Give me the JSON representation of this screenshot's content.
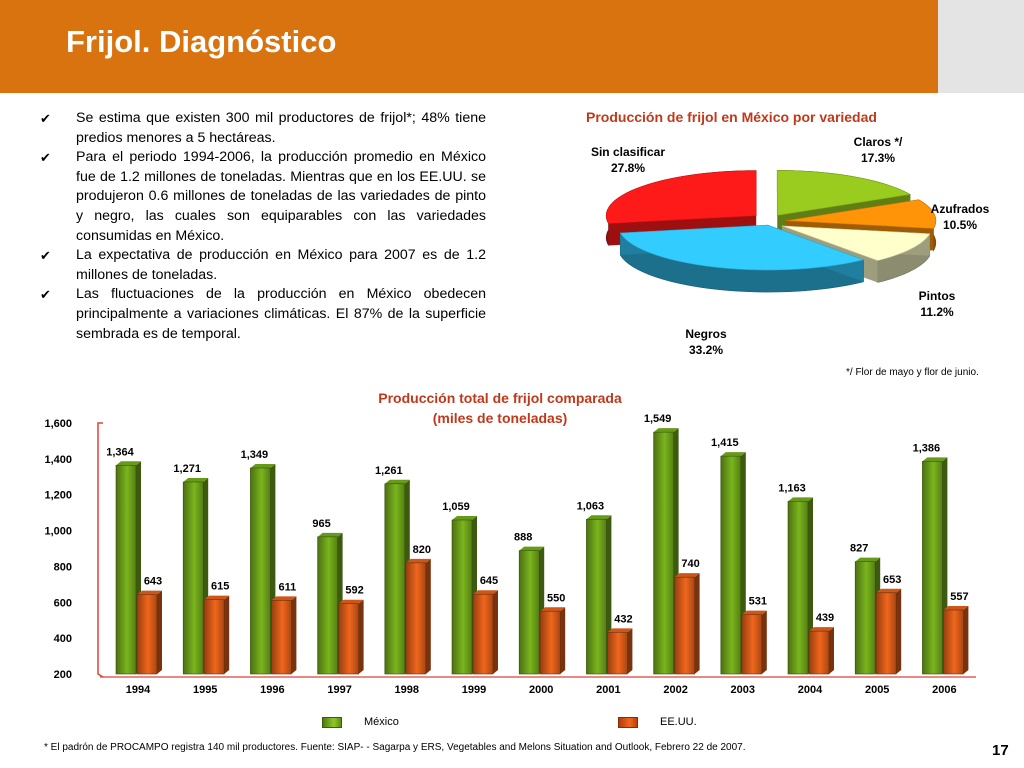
{
  "slide": {
    "title": "Frijol. Diagnóstico",
    "page_number": "17",
    "footnote": "* El padrón de PROCAMPO registra 140 mil productores. Fuente:  SIAP- - Sagarpa y ERS, Vegetables and Melons Situation and Outlook, Febrero 22 de 2007.",
    "bullets": [
      "Se estima que existen 300 mil productores de frijol*; 48% tiene predios  menores a 5 hectáreas.",
      "Para el periodo 1994-2006, la producción promedio en México fue de 1.2 millones de toneladas. Mientras que en los EE.UU. se produjeron 0.6 millones de toneladas de las variedades de pinto y negro, las cuales son equiparables con las variedades consumidas en México.",
      "La expectativa de producción en México para 2007 es de 1.2 millones de toneladas.",
      "Las fluctuaciones de la producción en México obedecen principalmente a variaciones climáticas. El 87% de la superficie sembrada es de temporal."
    ],
    "bullet_icon": "checkmark-icon",
    "header_color": "#d8730f"
  },
  "chart_data": [
    {
      "type": "pie",
      "title": "Producción de frijol en México por variedad",
      "footnote": "*/ Flor de mayo y flor de junio.",
      "slices": [
        {
          "name": "Claros */",
          "label": "17.3%",
          "value": 17.3,
          "color": "#99cc1e"
        },
        {
          "name": "Azufrados",
          "label": "10.5%",
          "value": 10.5,
          "color": "#ff9408"
        },
        {
          "name": "Pintos",
          "label": "11.2%",
          "value": 11.2,
          "color": "#ffffcc"
        },
        {
          "name": "Negros",
          "label": "33.2%",
          "value": 33.2,
          "color": "#33ccff"
        },
        {
          "name": "Sin clasificar",
          "label": "27.8%",
          "value": 27.8,
          "color": "#ff1a1a"
        }
      ]
    },
    {
      "type": "bar",
      "title": "Producción total de frijol comparada\n(miles de toneladas)",
      "categories": [
        "1994",
        "1995",
        "1996",
        "1997",
        "1998",
        "1999",
        "2000",
        "2001",
        "2002",
        "2003",
        "2004",
        "2005",
        "2006"
      ],
      "series": [
        {
          "name": "México",
          "color": "#7ab51d",
          "values": [
            1364,
            1271,
            1349,
            965,
            1261,
            1059,
            888,
            1063,
            1549,
            1415,
            1163,
            827,
            1386
          ],
          "labels": [
            "1,364",
            "1,271",
            "1,349",
            "965",
            "1,261",
            "1,059",
            "888",
            "1,063",
            "1,549",
            "1,415",
            "1,163",
            "827",
            "1,386"
          ]
        },
        {
          "name": "EE.UU.",
          "color": "#f0661c",
          "values": [
            643,
            615,
            611,
            592,
            820,
            645,
            550,
            432,
            740,
            531,
            439,
            653,
            557
          ],
          "labels": [
            "643",
            "615",
            "611",
            "592",
            "820",
            "645",
            "550",
            "432",
            "740",
            "531",
            "439",
            "653",
            "557"
          ]
        }
      ],
      "yticks": [
        "1,600",
        "1,400",
        "1,200",
        "1,000",
        "800",
        "600",
        "400",
        "200"
      ],
      "ylim": [
        200,
        1600
      ],
      "grid": false,
      "legend": "bottom"
    }
  ]
}
